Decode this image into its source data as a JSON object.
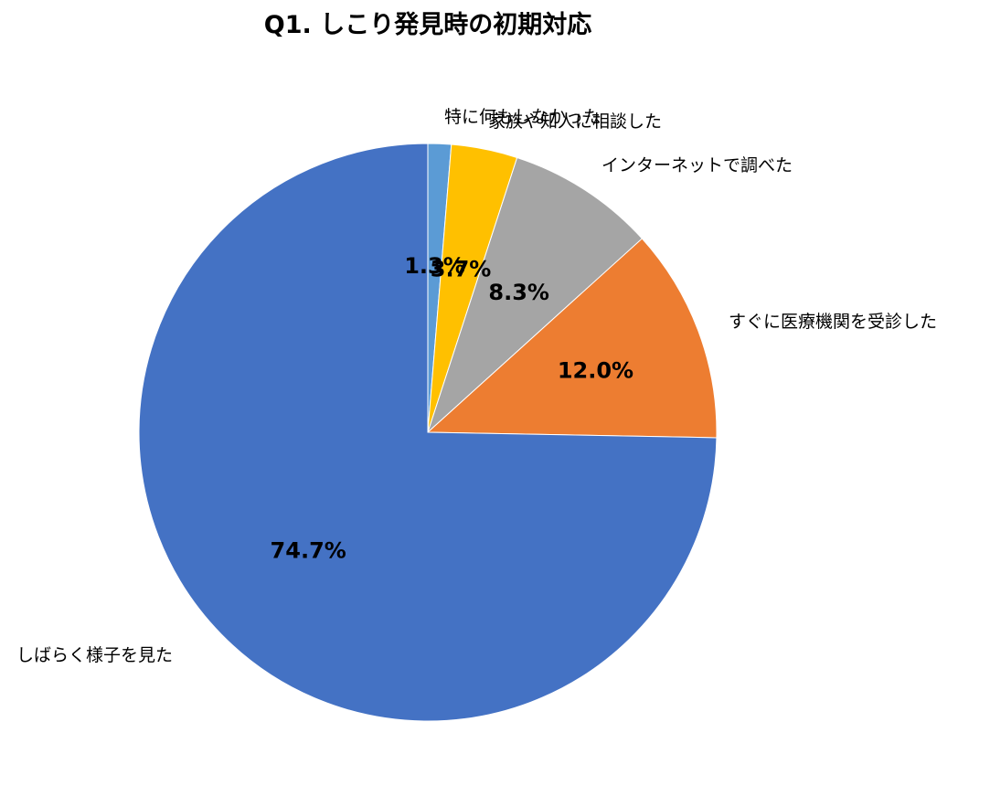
{
  "chart_data": {
    "type": "pie",
    "title": "Q1. しこり発見時の初期対応",
    "start_angle": "top",
    "direction": "clockwise",
    "slices": [
      {
        "label": "特に何もしなかった",
        "value": 1.3,
        "display": "1.3%",
        "color": "#5B9BD5"
      },
      {
        "label": "家族や知人に相談した",
        "value": 3.7,
        "display": "3.7%",
        "color": "#FFC000"
      },
      {
        "label": "インターネットで調べた",
        "value": 8.3,
        "display": "8.3%",
        "color": "#A5A5A5"
      },
      {
        "label": "すぐに医療機関を受診した",
        "value": 12.0,
        "display": "12.0%",
        "color": "#ED7D31"
      },
      {
        "label": "しばらく様子を見た",
        "value": 74.7,
        "display": "74.7%",
        "color": "#4472C4"
      }
    ]
  }
}
